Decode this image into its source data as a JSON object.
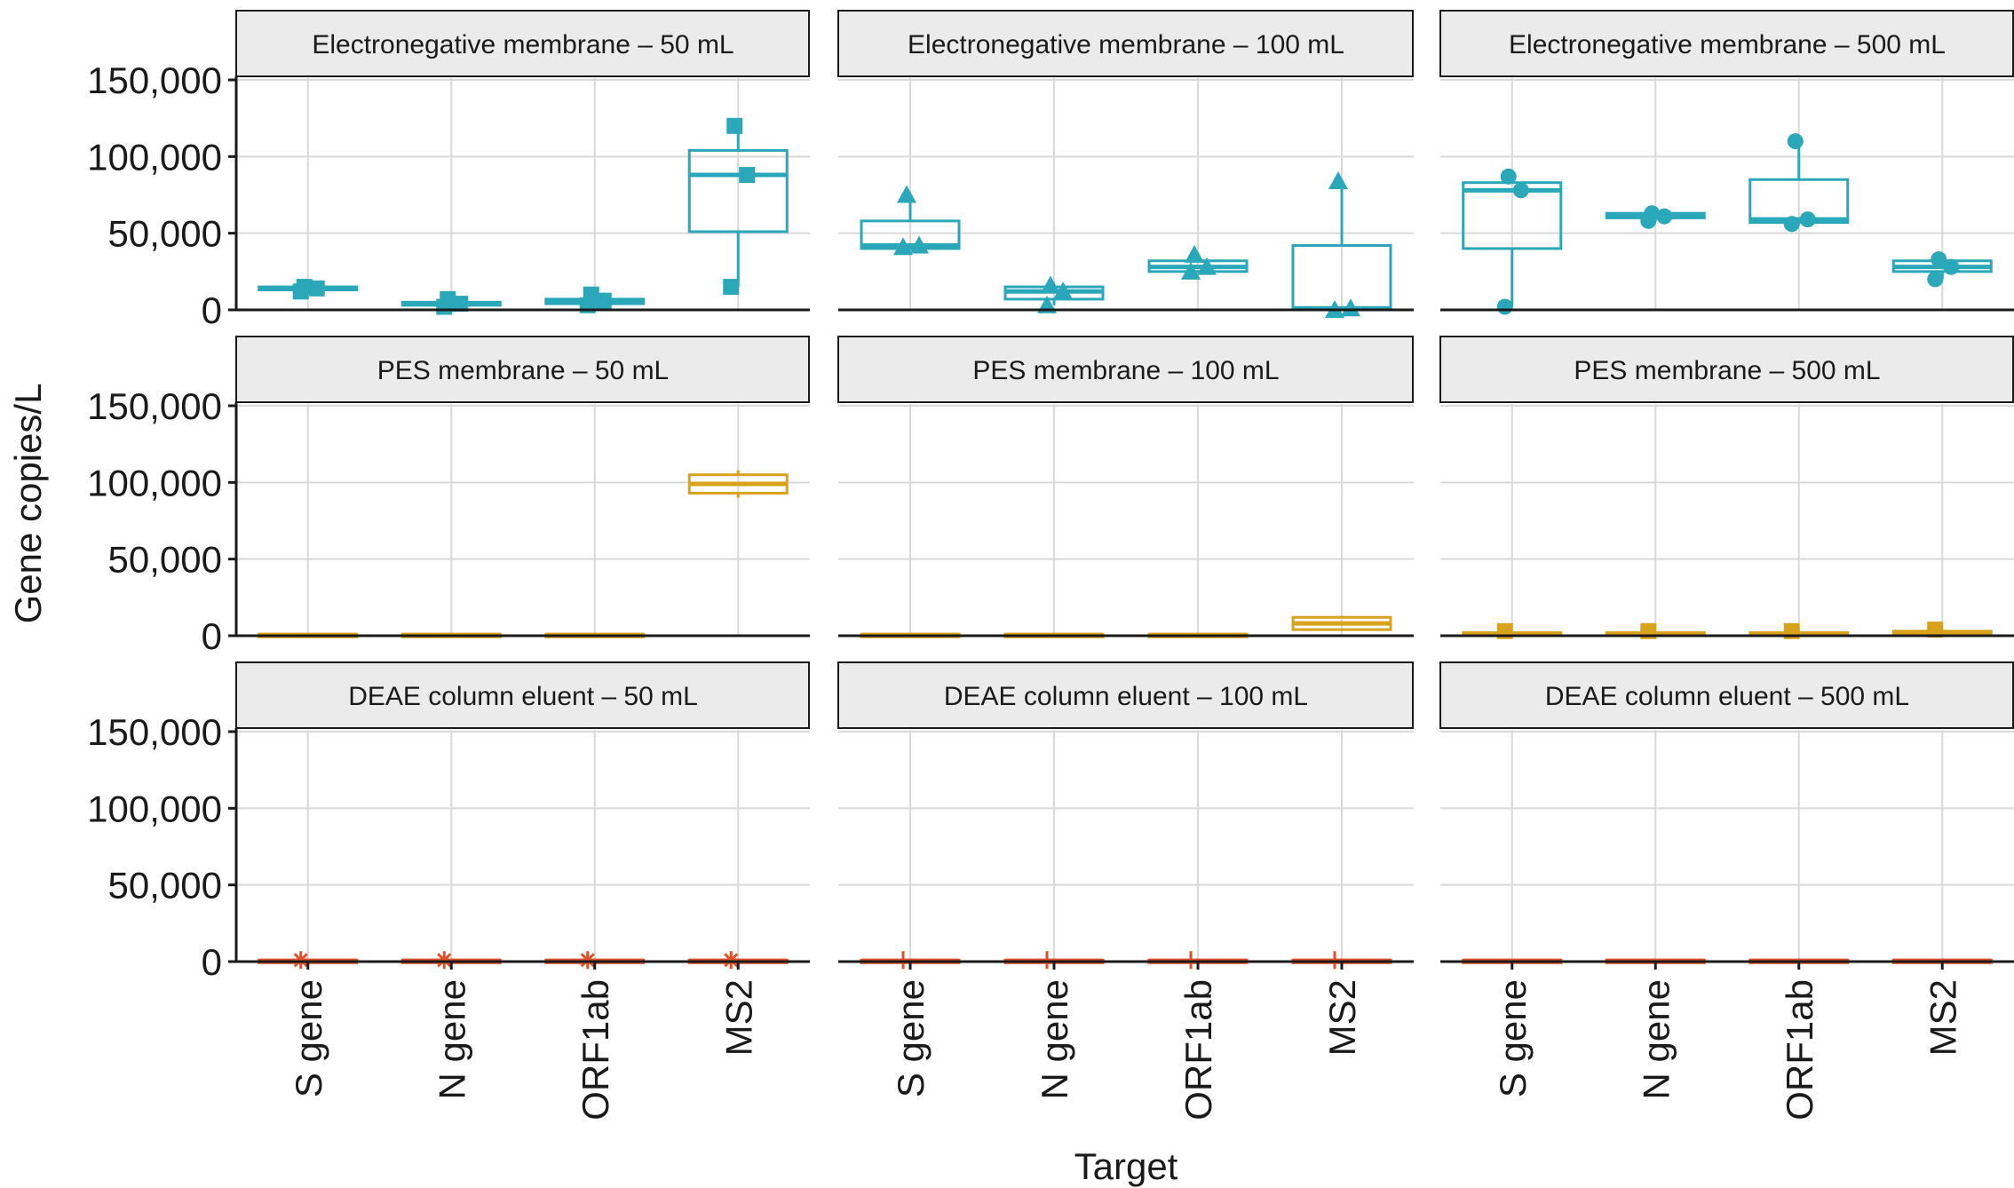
{
  "chart_data": {
    "type": "box",
    "xlabel": "Target",
    "ylabel": "Gene copies/L",
    "ylim": [
      0,
      150000
    ],
    "yticks": [
      0,
      50000,
      100000,
      150000
    ],
    "ytick_labels": [
      "0",
      "50,000",
      "100,000",
      "150,000"
    ],
    "grid": true,
    "categories": [
      "S gene",
      "N gene",
      "ORF1ab",
      "MS2"
    ],
    "colors": {
      "Electronegative membrane": "#2aa7b8",
      "PES membrane": "#d9a21b",
      "DEAE column eluent": "#e0512b"
    },
    "panels": [
      {
        "title": "Electronegative membrane – 50 mL",
        "method": "Electronegative membrane",
        "shape": "square",
        "boxes": [
          {
            "q1": 13000,
            "median": 14000,
            "q3": 15000,
            "lo": 12000,
            "hi": 15000,
            "points": [
              12000,
              14000,
              15000
            ]
          },
          {
            "q1": 3000,
            "median": 4000,
            "q3": 5000,
            "lo": 2000,
            "hi": 7000,
            "points": [
              2000,
              4000,
              7000
            ]
          },
          {
            "q1": 4000,
            "median": 6000,
            "q3": 7000,
            "lo": 3000,
            "hi": 10000,
            "points": [
              3000,
              6000,
              10000
            ]
          },
          {
            "q1": 51000,
            "median": 88000,
            "q3": 104000,
            "lo": 15000,
            "hi": 120000,
            "points": [
              15000,
              88000,
              120000
            ]
          }
        ]
      },
      {
        "title": "Electronegative membrane – 100 mL",
        "method": "Electronegative membrane",
        "shape": "triangle",
        "boxes": [
          {
            "q1": 40000,
            "median": 42000,
            "q3": 58000,
            "lo": 40000,
            "hi": 75000,
            "points": [
              41000,
              42000,
              75000
            ]
          },
          {
            "q1": 7000,
            "median": 12000,
            "q3": 15000,
            "lo": 3000,
            "hi": 16000,
            "points": [
              3000,
              12000,
              16000
            ]
          },
          {
            "q1": 25000,
            "median": 28000,
            "q3": 32000,
            "lo": 25000,
            "hi": 36000,
            "points": [
              25000,
              28000,
              36000
            ]
          },
          {
            "q1": 500,
            "median": 1000,
            "q3": 42000,
            "lo": 0,
            "hi": 84000,
            "points": [
              0,
              1000,
              84000
            ]
          }
        ]
      },
      {
        "title": "Electronegative membrane – 500 mL",
        "method": "Electronegative membrane",
        "shape": "circle",
        "boxes": [
          {
            "q1": 40000,
            "median": 78000,
            "q3": 83000,
            "lo": 2000,
            "hi": 87000,
            "points": [
              2000,
              78000,
              87000
            ]
          },
          {
            "q1": 60000,
            "median": 61000,
            "q3": 63000,
            "lo": 58000,
            "hi": 63000,
            "points": [
              58000,
              61000,
              63000
            ]
          },
          {
            "q1": 57000,
            "median": 59000,
            "q3": 85000,
            "lo": 56000,
            "hi": 110000,
            "points": [
              56000,
              59000,
              110000
            ]
          },
          {
            "q1": 25000,
            "median": 28000,
            "q3": 32000,
            "lo": 20000,
            "hi": 33000,
            "points": [
              20000,
              28000,
              33000
            ]
          }
        ]
      },
      {
        "title": "PES membrane – 50 mL",
        "method": "PES membrane",
        "shape": "circle",
        "boxes": [
          {
            "q1": 0,
            "median": 500,
            "q3": 1000,
            "lo": 0,
            "hi": 1000,
            "points": []
          },
          {
            "q1": 0,
            "median": 500,
            "q3": 1000,
            "lo": 0,
            "hi": 1000,
            "points": []
          },
          {
            "q1": 0,
            "median": 500,
            "q3": 1000,
            "lo": 0,
            "hi": 1000,
            "points": []
          },
          {
            "q1": 93000,
            "median": 99000,
            "q3": 105000,
            "lo": 90000,
            "hi": 108000,
            "points": []
          }
        ]
      },
      {
        "title": "PES membrane – 100 mL",
        "method": "PES membrane",
        "shape": "circle",
        "boxes": [
          {
            "q1": 0,
            "median": 500,
            "q3": 1000,
            "lo": 0,
            "hi": 1000,
            "points": []
          },
          {
            "q1": 0,
            "median": 500,
            "q3": 1000,
            "lo": 0,
            "hi": 1000,
            "points": []
          },
          {
            "q1": 0,
            "median": 500,
            "q3": 1000,
            "lo": 0,
            "hi": 1000,
            "points": []
          },
          {
            "q1": 4000,
            "median": 8000,
            "q3": 12000,
            "lo": 3000,
            "hi": 13000,
            "points": []
          }
        ]
      },
      {
        "title": "PES membrane – 500 mL",
        "method": "PES membrane",
        "shape": "square",
        "boxes": [
          {
            "q1": 0,
            "median": 1000,
            "q3": 2000,
            "lo": 0,
            "hi": 3000,
            "points": [
              3000
            ]
          },
          {
            "q1": 0,
            "median": 1000,
            "q3": 2000,
            "lo": 0,
            "hi": 3000,
            "points": [
              3000
            ]
          },
          {
            "q1": 0,
            "median": 1000,
            "q3": 2000,
            "lo": 0,
            "hi": 3000,
            "points": [
              3000
            ]
          },
          {
            "q1": 0,
            "median": 1500,
            "q3": 3000,
            "lo": 0,
            "hi": 4000,
            "points": [
              4000
            ]
          }
        ]
      },
      {
        "title": "DEAE column eluent – 50 mL",
        "method": "DEAE column eluent",
        "shape": "asterisk",
        "boxes": [
          {
            "q1": 0,
            "median": 500,
            "q3": 1000,
            "lo": 0,
            "hi": 2000,
            "points": [
              1000
            ]
          },
          {
            "q1": 0,
            "median": 500,
            "q3": 1000,
            "lo": 0,
            "hi": 2000,
            "points": [
              1000
            ]
          },
          {
            "q1": 0,
            "median": 500,
            "q3": 1000,
            "lo": 0,
            "hi": 2000,
            "points": [
              1000
            ]
          },
          {
            "q1": 0,
            "median": 500,
            "q3": 1000,
            "lo": 0,
            "hi": 2000,
            "points": [
              1000
            ]
          }
        ]
      },
      {
        "title": "DEAE column eluent – 100 mL",
        "method": "DEAE column eluent",
        "shape": "plus",
        "boxes": [
          {
            "q1": 0,
            "median": 500,
            "q3": 1000,
            "lo": 0,
            "hi": 2000,
            "points": [
              1000
            ]
          },
          {
            "q1": 0,
            "median": 500,
            "q3": 1000,
            "lo": 0,
            "hi": 2000,
            "points": [
              1000
            ]
          },
          {
            "q1": 0,
            "median": 500,
            "q3": 1000,
            "lo": 0,
            "hi": 2000,
            "points": [
              1000
            ]
          },
          {
            "q1": 0,
            "median": 500,
            "q3": 1000,
            "lo": 0,
            "hi": 2000,
            "points": [
              1000
            ]
          }
        ]
      },
      {
        "title": "DEAE column eluent – 500 mL",
        "method": "DEAE column eluent",
        "shape": "none",
        "boxes": [
          {
            "q1": 0,
            "median": 500,
            "q3": 1000,
            "lo": 0,
            "hi": 1000,
            "points": []
          },
          {
            "q1": 0,
            "median": 500,
            "q3": 1000,
            "lo": 0,
            "hi": 1000,
            "points": []
          },
          {
            "q1": 0,
            "median": 500,
            "q3": 1000,
            "lo": 0,
            "hi": 1000,
            "points": []
          },
          {
            "q1": 0,
            "median": 500,
            "q3": 1000,
            "lo": 0,
            "hi": 1000,
            "points": []
          }
        ]
      }
    ]
  }
}
